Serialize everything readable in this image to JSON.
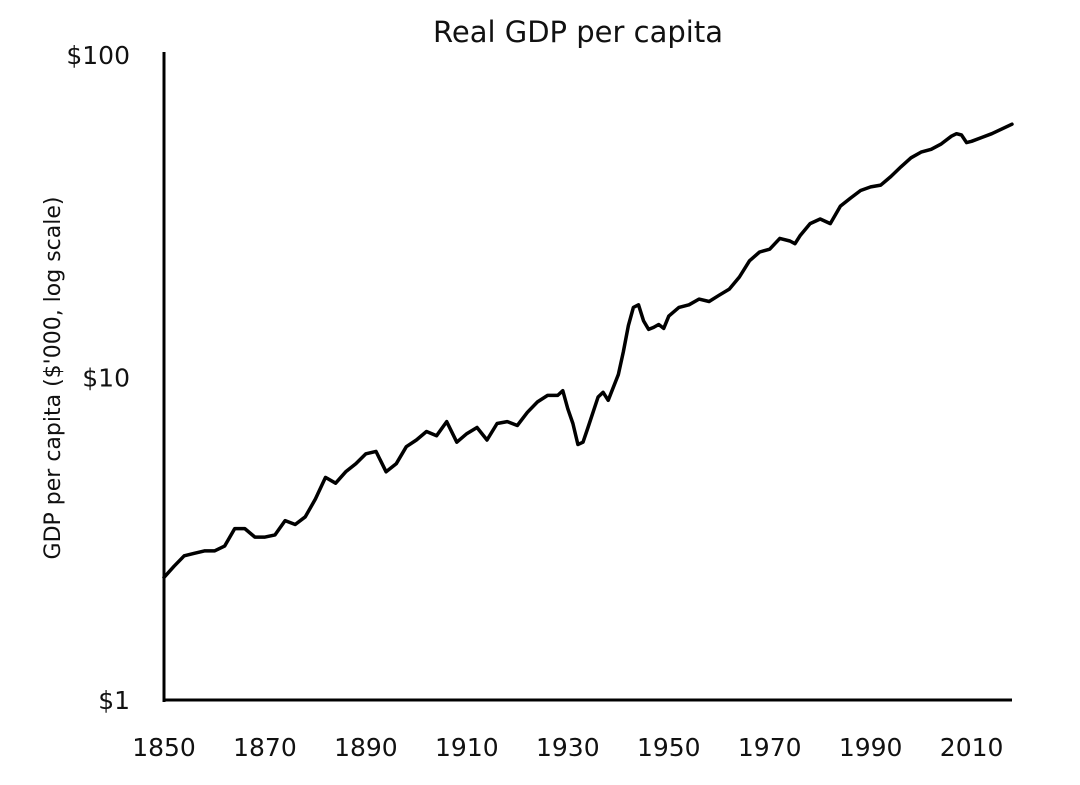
{
  "chart_data": {
    "type": "line",
    "title": "Real GDP per capita",
    "xlabel": "",
    "ylabel": "GDP per capita ($'000, log scale)",
    "yscale": "log",
    "xlim": [
      1850,
      2018
    ],
    "ylim": [
      1,
      100
    ],
    "grid": false,
    "legend": "none",
    "x_ticks": [
      "1850",
      "1870",
      "1890",
      "1910",
      "1930",
      "1950",
      "1970",
      "1990",
      "2010"
    ],
    "y_ticks": [
      "$1",
      "$10",
      "$100"
    ],
    "series": [
      {
        "color": "#000000",
        "x": [
          1850,
          1852,
          1854,
          1856,
          1858,
          1860,
          1862,
          1864,
          1866,
          1868,
          1870,
          1872,
          1874,
          1876,
          1878,
          1880,
          1882,
          1884,
          1886,
          1888,
          1890,
          1892,
          1894,
          1896,
          1898,
          1900,
          1902,
          1904,
          1906,
          1908,
          1910,
          1912,
          1914,
          1916,
          1918,
          1920,
          1922,
          1924,
          1926,
          1928,
          1929,
          1930,
          1931,
          1932,
          1933,
          1934,
          1936,
          1937,
          1938,
          1940,
          1941,
          1942,
          1943,
          1944,
          1945,
          1946,
          1947,
          1948,
          1949,
          1950,
          1952,
          1954,
          1956,
          1958,
          1960,
          1962,
          1964,
          1966,
          1968,
          1970,
          1972,
          1974,
          1975,
          1976,
          1978,
          1980,
          1982,
          1984,
          1986,
          1988,
          1990,
          1992,
          1994,
          1996,
          1998,
          2000,
          2002,
          2004,
          2006,
          2007,
          2008,
          2009,
          2010,
          2012,
          2014,
          2016,
          2018
        ],
        "y": [
          2.4,
          2.6,
          2.8,
          2.85,
          2.9,
          2.9,
          3.0,
          3.4,
          3.4,
          3.2,
          3.2,
          3.25,
          3.6,
          3.5,
          3.7,
          4.2,
          4.9,
          4.7,
          5.1,
          5.4,
          5.8,
          5.9,
          5.1,
          5.4,
          6.1,
          6.4,
          6.8,
          6.6,
          7.3,
          6.3,
          6.7,
          7.0,
          6.4,
          7.2,
          7.3,
          7.1,
          7.8,
          8.4,
          8.8,
          8.8,
          9.1,
          8.0,
          7.2,
          6.2,
          6.3,
          7.0,
          8.7,
          9.0,
          8.5,
          10.2,
          12.0,
          14.5,
          16.5,
          16.8,
          15.0,
          14.1,
          14.3,
          14.6,
          14.2,
          15.5,
          16.5,
          16.8,
          17.5,
          17.2,
          18.0,
          18.8,
          20.5,
          23.0,
          24.5,
          25.0,
          27.0,
          26.5,
          26.0,
          27.5,
          30.0,
          31.0,
          30.0,
          34.0,
          36.0,
          38.0,
          39.0,
          39.5,
          42.0,
          45.0,
          48.0,
          50.0,
          51.0,
          53.0,
          56.0,
          57.0,
          56.5,
          53.5,
          54.0,
          55.5,
          57.0,
          59.0,
          61.0
        ]
      }
    ]
  }
}
